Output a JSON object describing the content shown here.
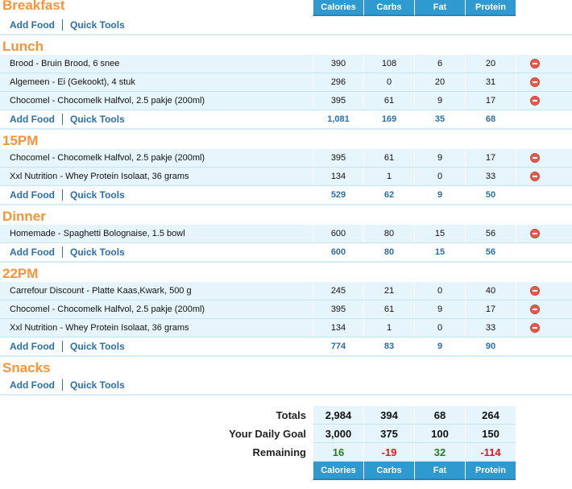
{
  "columns": [
    "Calories",
    "Carbs",
    "Fat",
    "Protein"
  ],
  "add_food_label": "Add Food",
  "quick_tools_label": "Quick Tools",
  "meals": [
    {
      "title": "Breakfast",
      "items": [],
      "totals": null
    },
    {
      "title": "Lunch",
      "items": [
        {
          "name": "Brood - Bruin Brood, 6 snee",
          "values": [
            "390",
            "108",
            "6",
            "20"
          ]
        },
        {
          "name": "Algemeen - Ei (Gekookt), 4 stuk",
          "values": [
            "296",
            "0",
            "20",
            "31"
          ]
        },
        {
          "name": "Chocomel - Chocomelk Halfvol, 2.5 pakje (200ml)",
          "values": [
            "395",
            "61",
            "9",
            "17"
          ]
        }
      ],
      "totals": [
        "1,081",
        "169",
        "35",
        "68"
      ]
    },
    {
      "title": "15PM",
      "items": [
        {
          "name": "Chocomel - Chocomelk Halfvol, 2.5 pakje (200ml)",
          "values": [
            "395",
            "61",
            "9",
            "17"
          ]
        },
        {
          "name": "Xxl Nutrition - Whey Protein Isolaat, 36 grams",
          "values": [
            "134",
            "1",
            "0",
            "33"
          ]
        }
      ],
      "totals": [
        "529",
        "62",
        "9",
        "50"
      ]
    },
    {
      "title": "Dinner",
      "items": [
        {
          "name": "Homemade - Spaghetti Bolognaise, 1.5 bowl",
          "values": [
            "600",
            "80",
            "15",
            "56"
          ]
        }
      ],
      "totals": [
        "600",
        "80",
        "15",
        "56"
      ]
    },
    {
      "title": "22PM",
      "items": [
        {
          "name": "Carrefour Discount - Platte Kaas,Kwark, 500 g",
          "values": [
            "245",
            "21",
            "0",
            "40"
          ]
        },
        {
          "name": "Chocomel - Chocomelk Halfvol, 2.5 pakje (200ml)",
          "values": [
            "395",
            "61",
            "9",
            "17"
          ]
        },
        {
          "name": "Xxl Nutrition - Whey Protein Isolaat, 36 grams",
          "values": [
            "134",
            "1",
            "0",
            "33"
          ]
        }
      ],
      "totals": [
        "774",
        "83",
        "9",
        "90"
      ]
    },
    {
      "title": "Snacks",
      "items": [],
      "totals": null
    }
  ],
  "summary": [
    {
      "label": "Totals",
      "values": [
        "2,984",
        "394",
        "68",
        "264"
      ]
    },
    {
      "label": "Your Daily Goal",
      "values": [
        "3,000",
        "375",
        "100",
        "150"
      ]
    },
    {
      "label": "Remaining",
      "values": [
        "16",
        "-19",
        "32",
        "-114"
      ],
      "status": [
        "pos",
        "neg",
        "pos",
        "neg"
      ]
    }
  ],
  "colors": {
    "accent": "#2e9ad0",
    "title": "#f7943a",
    "link": "#2a6fa8",
    "positive": "#2a7a1e",
    "negative": "#e0161a"
  }
}
